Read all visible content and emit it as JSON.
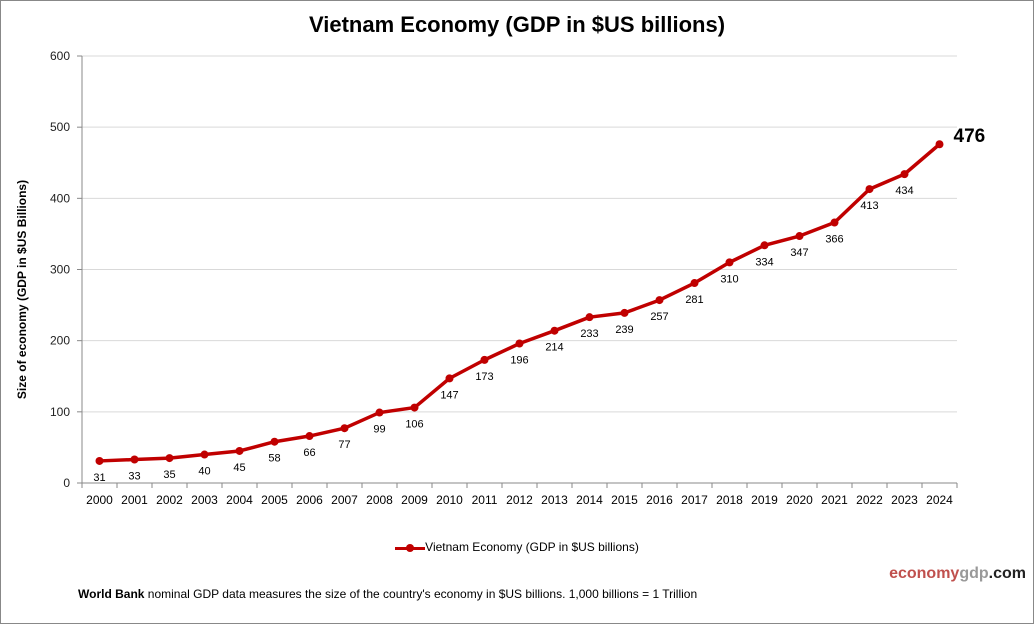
{
  "chart_data": {
    "type": "line",
    "title": "Vietnam Economy (GDP in $US billions)",
    "ylabel": "Size of economy (GDP in $US Billions)",
    "xlabel": "",
    "ylim": [
      0,
      600
    ],
    "yticks": [
      0,
      100,
      200,
      300,
      400,
      500,
      600
    ],
    "grid": true,
    "legend_placement": "bottom",
    "categories": [
      "2000",
      "2001",
      "2002",
      "2003",
      "2004",
      "2005",
      "2006",
      "2007",
      "2008",
      "2009",
      "2010",
      "2011",
      "2012",
      "2013",
      "2014",
      "2015",
      "2016",
      "2017",
      "2018",
      "2019",
      "2020",
      "2021",
      "2022",
      "2023",
      "2024"
    ],
    "series": [
      {
        "name": "Vietnam Economy (GDP in $US billions)",
        "color": "#c00000",
        "values": [
          31,
          33,
          35,
          40,
          45,
          58,
          66,
          77,
          99,
          106,
          147,
          173,
          196,
          214,
          233,
          239,
          257,
          281,
          310,
          334,
          347,
          366,
          413,
          434,
          476
        ]
      }
    ]
  },
  "brand": {
    "part1": "economy",
    "part2": "gdp",
    "part3": ".com"
  },
  "footer": {
    "bold": "World Bank",
    "text": " nominal GDP data  measures the size of the country's economy in $US billions. 1,000 billions = 1 Trillion"
  }
}
